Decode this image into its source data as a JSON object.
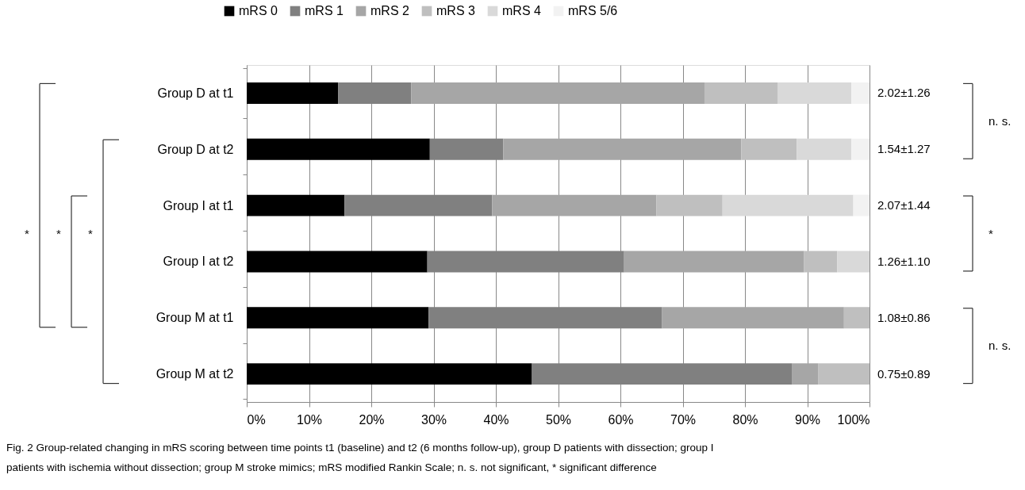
{
  "chart_data": {
    "type": "bar",
    "orientation": "horizontal",
    "stacked": true,
    "categories": [
      "Group D at t1",
      "Group D at t2",
      "Group I at t1",
      "Group I at t2",
      "Group M at t1",
      "Group M at t2"
    ],
    "series": [
      {
        "name": "mRS 0",
        "color": "#000000",
        "values": [
          14.7,
          29.4,
          15.7,
          29.0,
          29.2,
          45.8
        ]
      },
      {
        "name": "mRS 1",
        "color": "#808080",
        "values": [
          11.7,
          11.8,
          23.7,
          31.6,
          37.5,
          41.8
        ]
      },
      {
        "name": "mRS 2",
        "color": "#a6a6a6",
        "values": [
          47.1,
          38.2,
          26.4,
          28.9,
          29.2,
          4.2
        ]
      },
      {
        "name": "mRS 3",
        "color": "#bfbfbf",
        "values": [
          11.8,
          8.9,
          10.6,
          5.3,
          4.1,
          8.2
        ]
      },
      {
        "name": "mRS 4",
        "color": "#d9d9d9",
        "values": [
          11.8,
          8.8,
          21.0,
          5.2,
          null,
          null
        ]
      },
      {
        "name": "mRS 5/6",
        "color": "#f2f2f2",
        "values": [
          2.9,
          2.9,
          2.6,
          null,
          null,
          null
        ]
      }
    ],
    "xlim": [
      0,
      100
    ],
    "xticks": [
      {
        "value": 0,
        "label": "0%"
      },
      {
        "value": 10,
        "label": "10%"
      },
      {
        "value": 20,
        "label": "20%"
      },
      {
        "value": 30,
        "label": "30%"
      },
      {
        "value": 40,
        "label": "40%"
      },
      {
        "value": 50,
        "label": "50%"
      },
      {
        "value": 60,
        "label": "60%"
      },
      {
        "value": 70,
        "label": "70%"
      },
      {
        "value": 80,
        "label": "80%"
      },
      {
        "value": 90,
        "label": "90%"
      },
      {
        "value": 100,
        "label": "100%"
      }
    ],
    "grid": "x",
    "legend": "top",
    "annotations": [
      "2.02±1.26",
      "1.54±1.27",
      "2.07±1.44",
      "1.26±1.10",
      "1.08±0.86",
      "0.75±0.89",
      "n. s.",
      "*",
      "n. s.",
      "*",
      "*",
      "*",
      "Fig. 2 Group-related changing in mRS scoring between time points t1 (baseline) and t2 (6 months follow-up), group D patients with dissection; group I patients with ischemia without dissection; group M stroke mimics; mRS modified Rankin Scale; n. s. not significant, * significant difference"
    ]
  }
}
